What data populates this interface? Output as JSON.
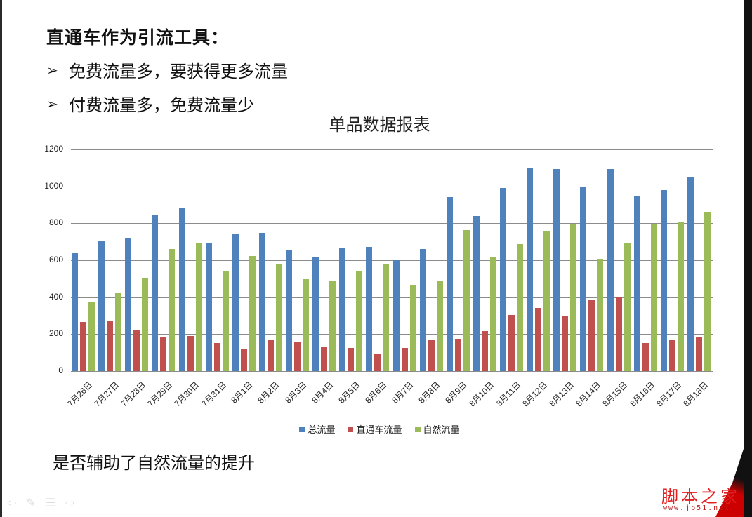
{
  "slide": {
    "heading": "直通车作为引流工具：",
    "bullets": [
      {
        "marker": "➢",
        "text": "免费流量多，要获得更多流量"
      },
      {
        "marker": "➢",
        "text": "付费流量多，免费流量少"
      }
    ],
    "footer_text": "是否辅助了自然流量的提升",
    "nav_icons": [
      "back-arrow-icon",
      "pen-icon",
      "menu-icon",
      "forward-arrow-icon"
    ],
    "watermark": {
      "text": "脚本之家",
      "url": "www.jb51.net"
    }
  },
  "colors": {
    "total": "#4F81BD",
    "paid": "#C0504D",
    "natural": "#9BBB59",
    "gridline": "#8C8C8C"
  },
  "chart_data": {
    "type": "bar",
    "title": "单品数据报表",
    "xlabel": "",
    "ylabel": "",
    "ylim": [
      0,
      1200
    ],
    "yticks": [
      0,
      200,
      400,
      600,
      800,
      1000,
      1200
    ],
    "grid": true,
    "legend_position": "bottom",
    "categories": [
      "7月26日",
      "7月27日",
      "7月28日",
      "7月29日",
      "7月30日",
      "7月31日",
      "8月1日",
      "8月2日",
      "8月3日",
      "8月4日",
      "8月5日",
      "8月6日",
      "8月7日",
      "8月8日",
      "8月9日",
      "8月10日",
      "8月11日",
      "8月12日",
      "8月13日",
      "8月14日",
      "8月15日",
      "8月16日",
      "8月17日",
      "8月18日"
    ],
    "series": [
      {
        "name": "总流量",
        "values": [
          638,
          701,
          722,
          843,
          885,
          692,
          739,
          748,
          656,
          618,
          670,
          674,
          600,
          660,
          942,
          839,
          992,
          1101,
          1092,
          1000,
          1092,
          950,
          980,
          1051
        ]
      },
      {
        "name": "直通车流量",
        "values": [
          264,
          272,
          219,
          181,
          190,
          152,
          119,
          166,
          161,
          132,
          127,
          94,
          127,
          172,
          175,
          218,
          302,
          342,
          297,
          388,
          400,
          152,
          167,
          185
        ]
      },
      {
        "name": "自然流量",
        "values": [
          376,
          427,
          501,
          659,
          693,
          542,
          622,
          581,
          497,
          486,
          543,
          577,
          468,
          485,
          765,
          618,
          688,
          755,
          792,
          609,
          694,
          798,
          809,
          863
        ]
      }
    ]
  }
}
